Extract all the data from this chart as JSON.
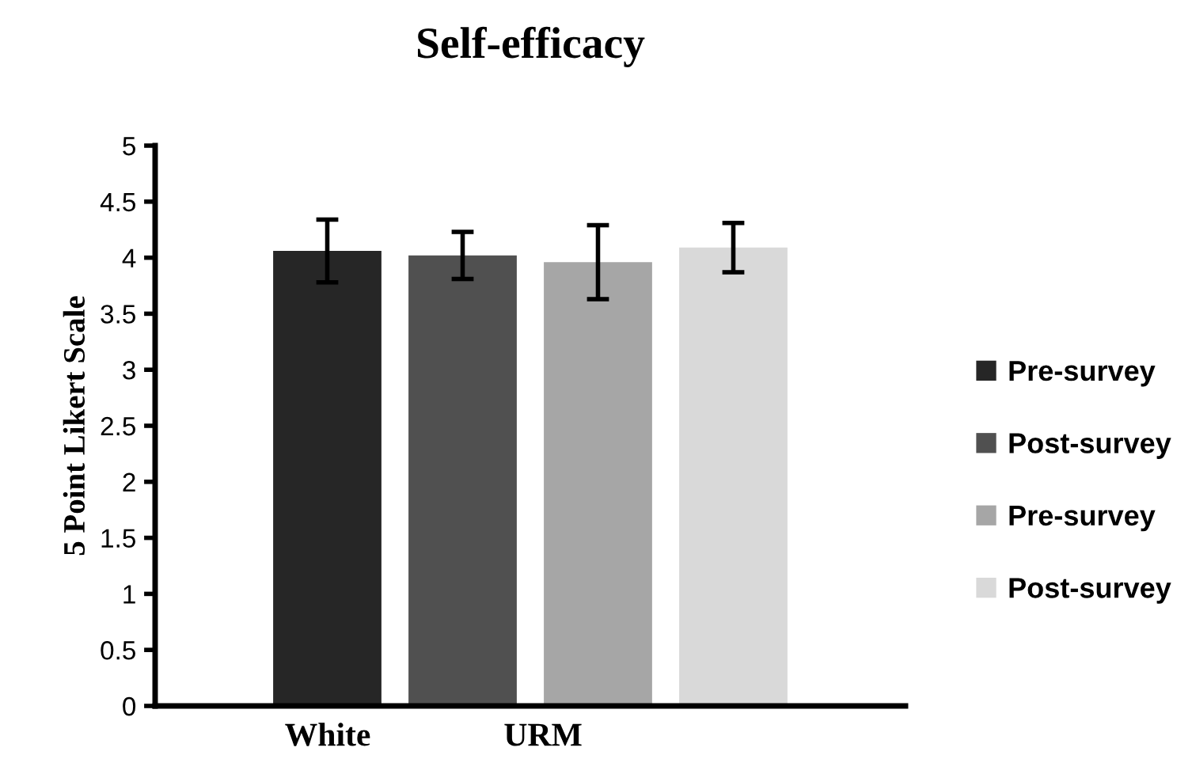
{
  "chart_data": {
    "type": "bar",
    "title": "Self-efficacy",
    "ylabel": "5 Point Likert Scale",
    "categories": [
      null
    ],
    "series": [
      {
        "name": "Pre-survey",
        "color": "#262626",
        "values": [
          4.06
        ],
        "errors": [
          0.28
        ]
      },
      {
        "name": "Post-survey",
        "color": "#505050",
        "values": [
          4.02
        ],
        "errors": [
          0.21
        ]
      },
      {
        "name": "Pre-survey",
        "color": "#a6a6a6",
        "values": [
          3.96
        ],
        "errors": [
          0.33
        ]
      },
      {
        "name": "Post-survey",
        "color": "#d9d9d9",
        "values": [
          4.09
        ],
        "errors": [
          0.22
        ]
      }
    ],
    "annotations": [
      "White",
      "URM"
    ],
    "ylim": [
      0,
      5
    ],
    "yticks": [
      0,
      0.5,
      1,
      1.5,
      2,
      2.5,
      3,
      3.5,
      4,
      4.5,
      5
    ],
    "grid": false,
    "legend": "right"
  }
}
